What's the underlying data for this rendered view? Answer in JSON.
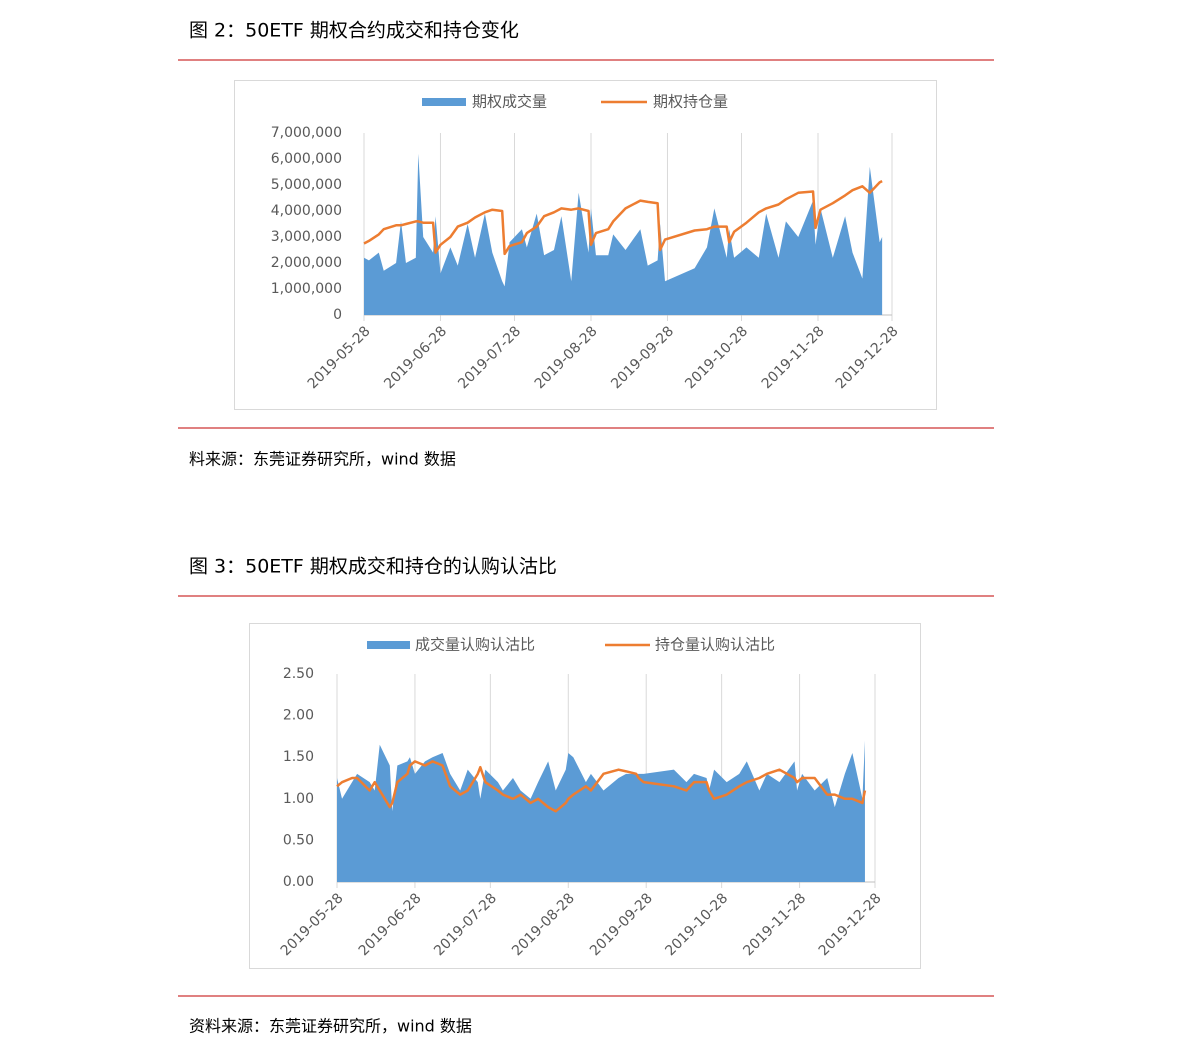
{
  "chart_data": [
    {
      "type": "area_line",
      "title": "图 2：50ETF 期权合约成交和持仓变化",
      "note": "料来源：东莞证券研究所，wind 数据",
      "x": [
        "2019-05-28",
        "2019-05-30",
        "2019-06-03",
        "2019-06-05",
        "2019-06-10",
        "2019-06-12",
        "2019-06-14",
        "2019-06-18",
        "2019-06-19",
        "2019-06-21",
        "2019-06-25",
        "2019-06-26",
        "2019-06-28",
        "2019-07-02",
        "2019-07-05",
        "2019-07-09",
        "2019-07-12",
        "2019-07-16",
        "2019-07-19",
        "2019-07-23",
        "2019-07-24",
        "2019-07-26",
        "2019-07-31",
        "2019-08-02",
        "2019-08-06",
        "2019-08-09",
        "2019-08-13",
        "2019-08-16",
        "2019-08-20",
        "2019-08-23",
        "2019-08-27",
        "2019-08-28",
        "2019-08-30",
        "2019-09-04",
        "2019-09-06",
        "2019-09-11",
        "2019-09-17",
        "2019-09-20",
        "2019-09-24",
        "2019-09-25",
        "2019-09-27",
        "2019-10-09",
        "2019-10-14",
        "2019-10-17",
        "2019-10-22",
        "2019-10-23",
        "2019-10-25",
        "2019-10-30",
        "2019-11-04",
        "2019-11-07",
        "2019-11-12",
        "2019-11-15",
        "2019-11-20",
        "2019-11-26",
        "2019-11-27",
        "2019-11-29",
        "2019-12-04",
        "2019-12-09",
        "2019-12-12",
        "2019-12-16",
        "2019-12-19",
        "2019-12-23",
        "2019-12-24"
      ],
      "series": [
        {
          "name": "期权成交量",
          "color": "#5b9bd5",
          "kind": "area",
          "values": [
            2200000,
            2100000,
            2400000,
            1700000,
            2000000,
            3600000,
            2000000,
            2200000,
            6200000,
            3000000,
            2400000,
            3800000,
            1600000,
            2600000,
            1900000,
            3500000,
            2200000,
            3900000,
            2400000,
            1300000,
            1100000,
            2800000,
            3300000,
            2600000,
            3900000,
            2300000,
            2500000,
            3800000,
            1300000,
            4700000,
            2400000,
            4100000,
            2300000,
            2300000,
            3100000,
            2500000,
            3300000,
            1900000,
            2100000,
            3500000,
            1300000,
            1800000,
            2600000,
            4100000,
            2200000,
            3300000,
            2200000,
            2600000,
            2200000,
            3900000,
            2200000,
            3600000,
            3000000,
            4400000,
            2700000,
            4100000,
            2200000,
            3800000,
            2400000,
            1400000,
            5700000,
            2800000,
            3000000
          ]
        },
        {
          "name": "期权持仓量",
          "color": "#ed7d31",
          "kind": "line",
          "values": [
            2750000,
            2850000,
            3100000,
            3300000,
            3450000,
            3450000,
            3500000,
            3600000,
            3600000,
            3550000,
            3550000,
            2400000,
            2700000,
            3000000,
            3400000,
            3550000,
            3750000,
            3950000,
            4050000,
            4000000,
            2350000,
            2650000,
            2800000,
            3150000,
            3400000,
            3800000,
            3950000,
            4100000,
            4050000,
            4100000,
            4000000,
            2700000,
            3150000,
            3300000,
            3600000,
            4100000,
            4400000,
            4350000,
            4300000,
            2500000,
            2900000,
            3250000,
            3300000,
            3400000,
            3400000,
            2800000,
            3200000,
            3550000,
            3950000,
            4100000,
            4250000,
            4450000,
            4700000,
            4750000,
            3350000,
            4050000,
            4300000,
            4600000,
            4800000,
            4950000,
            4700000,
            5100000,
            5150000
          ]
        }
      ],
      "xlim": [
        "2019-05-28",
        "2019-12-28"
      ],
      "xticks": [
        "2019-05-28",
        "2019-06-28",
        "2019-07-28",
        "2019-08-28",
        "2019-09-28",
        "2019-10-28",
        "2019-11-28",
        "2019-12-28"
      ],
      "ylim": [
        0,
        7000000
      ],
      "yticks": [
        0,
        {
          "value": 1000000,
          "label": "1,000,000"
        },
        {
          "value": 2000000,
          "label": "2,000,000"
        },
        {
          "value": 3000000,
          "label": "3,000,000"
        },
        {
          "value": 4000000,
          "label": "4,000,000"
        },
        {
          "value": 5000000,
          "label": "5,000,000"
        },
        {
          "value": 6000000,
          "label": "6,000,000"
        },
        {
          "value": 7000000,
          "label": "7,000,000"
        }
      ],
      "grid": "x"
    },
    {
      "type": "area_line",
      "title": "图 3：50ETF 期权成交和持仓的认购认沽比",
      "note": "资料来源：东莞证券研究所，wind 数据",
      "x": [
        "2019-05-28",
        "2019-05-30",
        "2019-06-03",
        "2019-06-05",
        "2019-06-10",
        "2019-06-12",
        "2019-06-14",
        "2019-06-18",
        "2019-06-19",
        "2019-06-21",
        "2019-06-25",
        "2019-06-26",
        "2019-06-28",
        "2019-07-02",
        "2019-07-05",
        "2019-07-09",
        "2019-07-12",
        "2019-07-16",
        "2019-07-19",
        "2019-07-23",
        "2019-07-24",
        "2019-07-26",
        "2019-07-31",
        "2019-08-02",
        "2019-08-06",
        "2019-08-09",
        "2019-08-13",
        "2019-08-16",
        "2019-08-20",
        "2019-08-23",
        "2019-08-27",
        "2019-08-28",
        "2019-08-30",
        "2019-09-04",
        "2019-09-06",
        "2019-09-11",
        "2019-09-17",
        "2019-09-20",
        "2019-09-24",
        "2019-09-25",
        "2019-09-27",
        "2019-10-09",
        "2019-10-14",
        "2019-10-17",
        "2019-10-22",
        "2019-10-23",
        "2019-10-25",
        "2019-10-30",
        "2019-11-04",
        "2019-11-07",
        "2019-11-12",
        "2019-11-15",
        "2019-11-20",
        "2019-11-26",
        "2019-11-27",
        "2019-11-29",
        "2019-12-04",
        "2019-12-09",
        "2019-12-12",
        "2019-12-16",
        "2019-12-19",
        "2019-12-23",
        "2019-12-24"
      ],
      "series": [
        {
          "name": "成交量认购认沽比",
          "color": "#5b9bd5",
          "kind": "area",
          "values": [
            1.25,
            1.0,
            1.2,
            1.3,
            1.2,
            1.1,
            1.65,
            1.4,
            0.85,
            1.4,
            1.45,
            1.5,
            1.3,
            1.45,
            1.5,
            1.55,
            1.3,
            1.1,
            1.35,
            1.2,
            1.0,
            1.35,
            1.2,
            1.1,
            1.25,
            1.1,
            1.0,
            1.2,
            1.45,
            1.1,
            1.35,
            1.55,
            1.5,
            1.2,
            1.3,
            1.1,
            1.25,
            1.3,
            1.3,
            1.3,
            1.3,
            1.35,
            1.2,
            1.3,
            1.25,
            1.1,
            1.35,
            1.2,
            1.3,
            1.45,
            1.1,
            1.3,
            1.2,
            1.45,
            1.1,
            1.3,
            1.1,
            1.25,
            0.9,
            1.3,
            1.55,
            1.0,
            1.7
          ]
        },
        {
          "name": "持仓量认购认沽比",
          "color": "#ed7d31",
          "kind": "line",
          "values": [
            1.15,
            1.2,
            1.25,
            1.25,
            1.1,
            1.2,
            1.1,
            0.9,
            0.95,
            1.2,
            1.3,
            1.4,
            1.45,
            1.4,
            1.45,
            1.4,
            1.15,
            1.05,
            1.1,
            1.3,
            1.38,
            1.2,
            1.1,
            1.05,
            1.0,
            1.05,
            0.95,
            1.0,
            0.9,
            0.85,
            0.95,
            1.0,
            1.05,
            1.15,
            1.1,
            1.3,
            1.35,
            1.33,
            1.3,
            1.25,
            1.2,
            1.15,
            1.1,
            1.2,
            1.2,
            1.1,
            1.0,
            1.05,
            1.15,
            1.2,
            1.25,
            1.3,
            1.35,
            1.25,
            1.2,
            1.25,
            1.25,
            1.05,
            1.05,
            1.0,
            1.0,
            0.95,
            1.1
          ]
        }
      ],
      "xlim": [
        "2019-05-28",
        "2019-12-28"
      ],
      "xticks": [
        "2019-05-28",
        "2019-06-28",
        "2019-07-28",
        "2019-08-28",
        "2019-09-28",
        "2019-10-28",
        "2019-11-28",
        "2019-12-28"
      ],
      "ylim": [
        0,
        2.5
      ],
      "yticks": [
        {
          "value": 0,
          "label": "0.00"
        },
        {
          "value": 0.5,
          "label": "0.50"
        },
        {
          "value": 1,
          "label": "1.00"
        },
        {
          "value": 1.5,
          "label": "1.50"
        },
        {
          "value": 2,
          "label": "2.00"
        },
        {
          "value": 2.5,
          "label": "2.50"
        }
      ],
      "grid": "x"
    }
  ]
}
